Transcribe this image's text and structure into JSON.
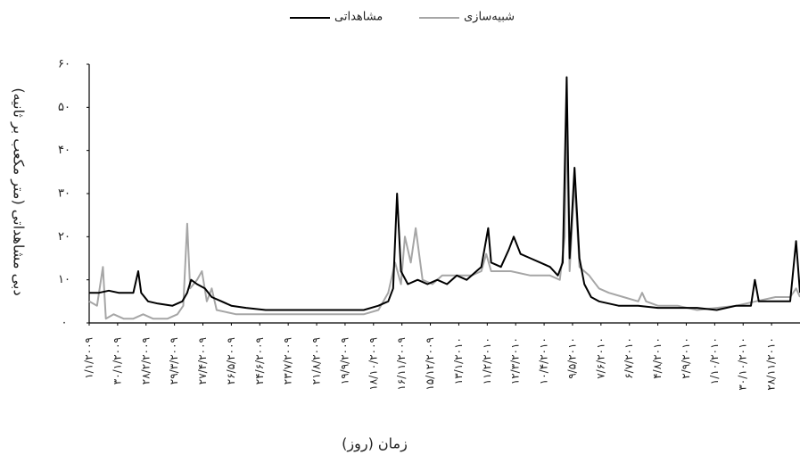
{
  "chart_data": {
    "type": "line",
    "x_label": "زمان (روز)",
    "y_label": "دبی مشاهداتی (متر مکعب بر ثانیه)",
    "legend": "top",
    "xlim": [
      0,
      725
    ],
    "ylim": [
      0,
      60
    ],
    "yticks": [
      {
        "value": 0,
        "label": "۰"
      },
      {
        "value": 10,
        "label": "۱۰"
      },
      {
        "value": 20,
        "label": "۲۰"
      },
      {
        "value": 30,
        "label": "۳۰"
      },
      {
        "value": 40,
        "label": "۴۰"
      },
      {
        "value": 50,
        "label": "۵۰"
      },
      {
        "value": 60,
        "label": "۶۰"
      }
    ],
    "xticks": [
      {
        "value": 0,
        "label": "۱/۱/۲۰۰۹"
      },
      {
        "value": 29,
        "label": "۳۰/۱/۲۰۰۹"
      },
      {
        "value": 58,
        "label": "۲۸/۲/۲۰۰۹"
      },
      {
        "value": 87,
        "label": "۲۹/۳/۲۰۰۹"
      },
      {
        "value": 116,
        "label": "۲۷/۴/۲۰۰۹"
      },
      {
        "value": 145,
        "label": "۲۶/۵/۲۰۰۹"
      },
      {
        "value": 174,
        "label": "۲۴/۶/۲۰۰۹"
      },
      {
        "value": 203,
        "label": "۲۳/۷/۲۰۰۹"
      },
      {
        "value": 232,
        "label": "۲۱/۸/۲۰۰۹"
      },
      {
        "value": 261,
        "label": "۱۹/۹/۲۰۰۹"
      },
      {
        "value": 290,
        "label": "۱۸/۱۰/۲۰۰۹"
      },
      {
        "value": 319,
        "label": "۱۶/۱۱/۲۰۰۹"
      },
      {
        "value": 348,
        "label": "۱۵/۱۲/۲۰۰۹"
      },
      {
        "value": 377,
        "label": "۱۳/۱/۲۰۱۰"
      },
      {
        "value": 406,
        "label": "۱۱/۲/۲۰۱۰"
      },
      {
        "value": 435,
        "label": "۱۲/۳/۲۰۱۰"
      },
      {
        "value": 464,
        "label": "۱۰/۴/۲۰۱۰"
      },
      {
        "value": 493,
        "label": "۹/۵/۲۰۱۰"
      },
      {
        "value": 522,
        "label": "۷/۶/۲۰۱۰"
      },
      {
        "value": 551,
        "label": "۶/۷/۲۰۱۰"
      },
      {
        "value": 580,
        "label": "۴/۸/۲۰۱۰"
      },
      {
        "value": 609,
        "label": "۲/۹/۲۰۱۰"
      },
      {
        "value": 638,
        "label": "۱/۱۰/۲۰۱۰"
      },
      {
        "value": 667,
        "label": "۳۰/۱۰/۲۰۱۰"
      },
      {
        "value": 696,
        "label": "۲۸/۱۱/۲۰۱۰"
      }
    ],
    "series": [
      {
        "name": "مشاهداتی",
        "color": "#000000",
        "x": [
          0,
          10,
          20,
          30,
          45,
          50,
          53,
          60,
          70,
          85,
          95,
          100,
          104,
          110,
          118,
          125,
          135,
          145,
          160,
          180,
          200,
          230,
          260,
          280,
          295,
          305,
          310,
          314,
          318,
          325,
          335,
          345,
          355,
          365,
          375,
          385,
          395,
          400,
          407,
          410,
          420,
          428,
          433,
          440,
          450,
          460,
          470,
          478,
          483,
          487,
          490,
          495,
          500,
          505,
          512,
          520,
          540,
          560,
          580,
          600,
          620,
          640,
          660,
          675,
          679,
          683,
          700,
          715,
          721,
          725
        ],
        "values": [
          7,
          7,
          7.5,
          7,
          7,
          12,
          7,
          5,
          4.5,
          4,
          5,
          7,
          10,
          9,
          8,
          6,
          5,
          4,
          3.5,
          3,
          3,
          3,
          3,
          3,
          4,
          5,
          8,
          30,
          12,
          9,
          10,
          9,
          10,
          9,
          11,
          10,
          12,
          13,
          22,
          14,
          13,
          17,
          20,
          16,
          15,
          14,
          13,
          11,
          14,
          57,
          15,
          36,
          15,
          9,
          6,
          5,
          4,
          4,
          3.5,
          3.5,
          3.5,
          3,
          4,
          4,
          10,
          5,
          5,
          5,
          19,
          7
        ]
      },
      {
        "name": "شبیه‌سازی",
        "color": "#a6a6a6",
        "x": [
          0,
          8,
          14,
          17,
          25,
          35,
          45,
          55,
          65,
          80,
          90,
          96,
          100,
          103,
          110,
          115,
          120,
          125,
          130,
          150,
          180,
          220,
          260,
          280,
          295,
          305,
          312,
          318,
          322,
          328,
          333,
          340,
          350,
          360,
          375,
          390,
          400,
          405,
          410,
          430,
          450,
          470,
          480,
          485,
          487,
          490,
          495,
          500,
          510,
          520,
          530,
          545,
          560,
          564,
          568,
          580,
          600,
          620,
          660,
          680,
          700,
          715,
          721,
          725
        ],
        "values": [
          5,
          4,
          13,
          1,
          2,
          1,
          1,
          2,
          1,
          1,
          2,
          4,
          23,
          8,
          10,
          12,
          5,
          8,
          3,
          2,
          2,
          2,
          2,
          2,
          3,
          7,
          14,
          9,
          20,
          14,
          22,
          10,
          9,
          11,
          11,
          11,
          12,
          16,
          12,
          12,
          11,
          11,
          10,
          20,
          47,
          12,
          33,
          13,
          11,
          8,
          7,
          6,
          5,
          7,
          5,
          4,
          4,
          3,
          4,
          5,
          6,
          6,
          8,
          6
        ]
      }
    ]
  }
}
